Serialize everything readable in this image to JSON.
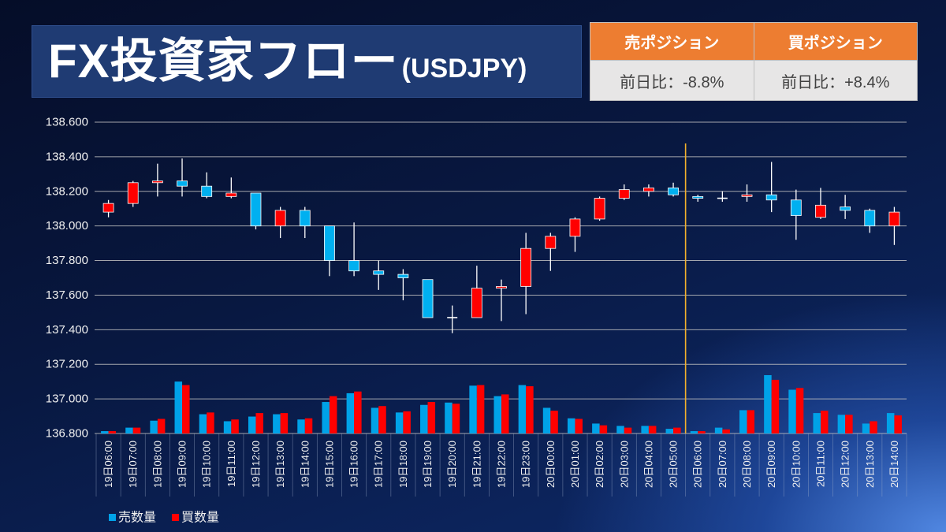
{
  "title": {
    "main": "FX投資家フロー",
    "sub": "(USDJPY)"
  },
  "position_table": {
    "headers": [
      "売ポジション",
      "買ポジション"
    ],
    "values": [
      "前日比：-8.8%",
      "前日比：+8.4%"
    ],
    "header_color": "#ed7d31",
    "body_color": "#e7e6e6"
  },
  "chart_data": {
    "type": "candlestick",
    "categories": [
      "19日06:00",
      "19日07:00",
      "19日08:00",
      "19日09:00",
      "19日10:00",
      "19日11:00",
      "19日12:00",
      "19日13:00",
      "19日14:00",
      "19日15:00",
      "19日16:00",
      "19日17:00",
      "19日18:00",
      "19日19:00",
      "19日20:00",
      "19日21:00",
      "19日22:00",
      "19日23:00",
      "20日00:00",
      "20日01:00",
      "20日02:00",
      "20日03:00",
      "20日04:00",
      "20日05:00",
      "20日06:00",
      "20日07:00",
      "20日08:00",
      "20日09:00",
      "20日10:00",
      "20日11:00",
      "20日12:00",
      "20日13:00",
      "20日14:00"
    ],
    "open": [
      138.08,
      138.13,
      138.25,
      138.26,
      138.23,
      138.17,
      138.19,
      138.0,
      138.09,
      138.0,
      137.8,
      137.74,
      137.72,
      137.69,
      137.47,
      137.47,
      137.64,
      137.65,
      137.87,
      137.94,
      138.04,
      138.16,
      138.2,
      138.22,
      138.17,
      138.16,
      138.17,
      138.18,
      138.15,
      138.05,
      138.11,
      138.09,
      138.0
    ],
    "high": [
      138.15,
      138.26,
      138.36,
      138.39,
      138.31,
      138.28,
      138.19,
      138.11,
      138.11,
      138.0,
      138.02,
      137.8,
      137.75,
      137.69,
      137.54,
      137.77,
      137.69,
      137.96,
      137.96,
      138.05,
      138.17,
      138.24,
      138.24,
      138.25,
      138.18,
      138.2,
      138.24,
      138.37,
      138.21,
      138.22,
      138.18,
      138.1,
      138.11
    ],
    "low": [
      138.05,
      138.11,
      138.17,
      138.17,
      138.16,
      138.16,
      137.98,
      137.93,
      137.93,
      137.71,
      137.71,
      137.63,
      137.57,
      137.47,
      137.38,
      137.47,
      137.45,
      137.49,
      137.74,
      137.85,
      138.03,
      138.15,
      138.17,
      138.17,
      138.14,
      138.14,
      138.14,
      138.08,
      137.92,
      138.04,
      138.04,
      137.96,
      137.89
    ],
    "close": [
      138.13,
      138.25,
      138.26,
      138.23,
      138.17,
      138.19,
      138.0,
      138.09,
      138.0,
      137.8,
      137.74,
      137.72,
      137.7,
      137.47,
      137.47,
      137.64,
      137.65,
      137.87,
      137.94,
      138.04,
      138.16,
      138.21,
      138.22,
      138.18,
      138.16,
      138.16,
      138.18,
      138.15,
      138.06,
      138.12,
      138.09,
      138.0,
      138.08
    ],
    "ylim": [
      136.8,
      138.6
    ],
    "yticks": [
      "138.600",
      "138.400",
      "138.200",
      "138.000",
      "137.800",
      "137.600",
      "137.400",
      "137.200",
      "137.000",
      "136.800"
    ],
    "grid": true,
    "up_color": "#ff0000",
    "down_color": "#00b0f0",
    "divider_before_category": 24,
    "divider_color": "#f2b12c",
    "volume": {
      "type": "bar",
      "legend": "bottom-left",
      "series": [
        {
          "name": "売数量",
          "color": "#00a2e8",
          "values": [
            4,
            10,
            22,
            89,
            33,
            21,
            29,
            33,
            24,
            54,
            69,
            44,
            36,
            49,
            53,
            82,
            64,
            83,
            44,
            26,
            17,
            13,
            13,
            8,
            4,
            10,
            40,
            100,
            75,
            35,
            32,
            17,
            35
          ]
        },
        {
          "name": "買数量",
          "color": "#ff0000",
          "values": [
            4,
            10,
            25,
            83,
            36,
            24,
            35,
            35,
            26,
            64,
            72,
            47,
            38,
            54,
            51,
            83,
            67,
            81,
            39,
            25,
            14,
            10,
            13,
            10,
            4,
            7,
            40,
            92,
            78,
            39,
            32,
            21,
            31
          ]
        }
      ]
    }
  }
}
